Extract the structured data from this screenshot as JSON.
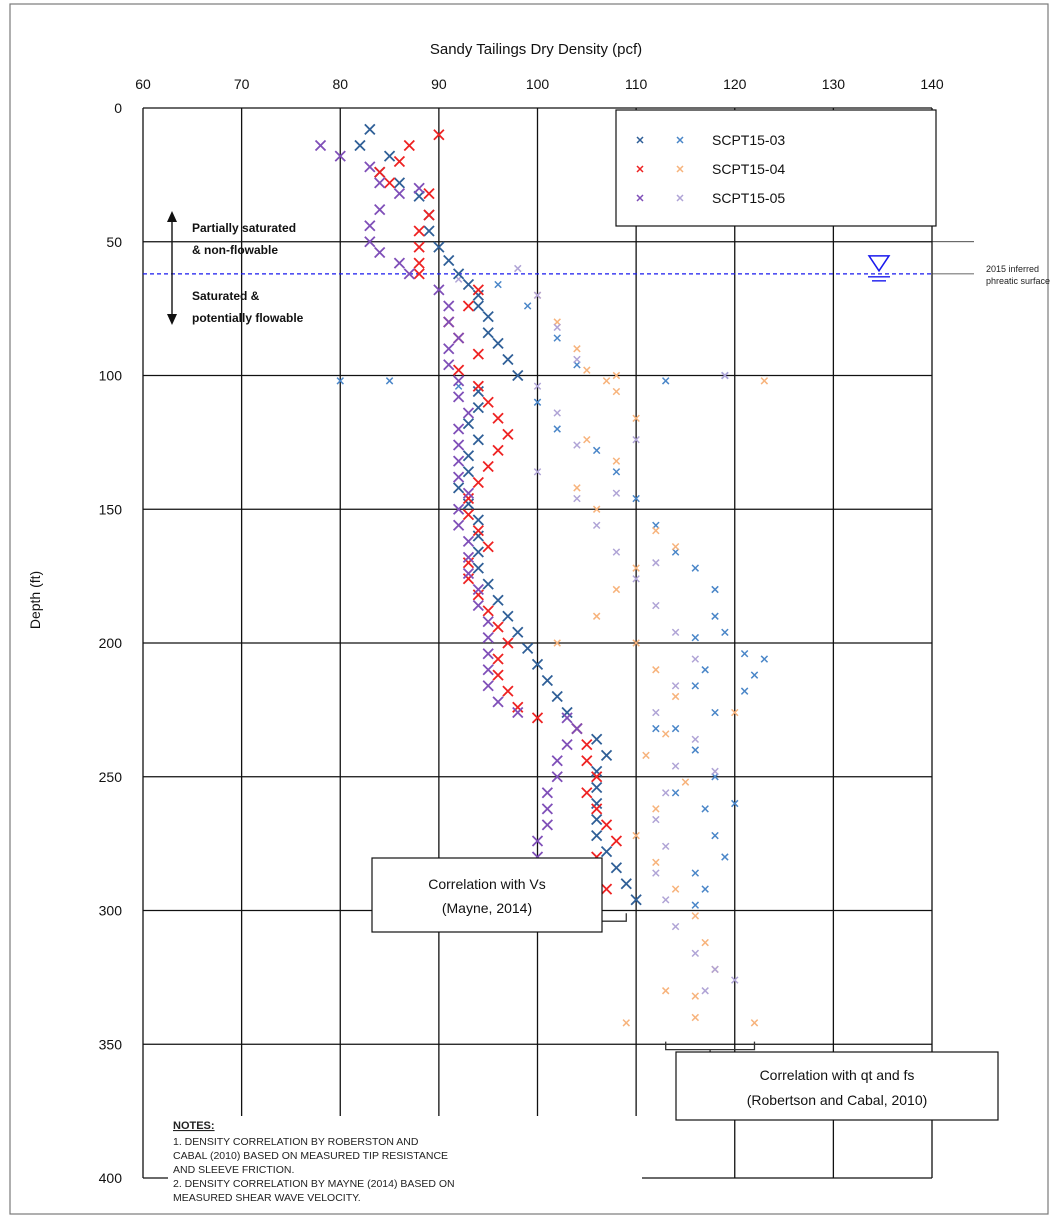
{
  "chart_data": {
    "type": "scatter",
    "title": "Sandy Tailings Dry Density (pcf)",
    "xlabel": "Sandy Tailings Dry Density (pcf)",
    "ylabel": "Depth (ft)",
    "xlim": [
      60,
      140
    ],
    "ylim": [
      0,
      400
    ],
    "y_inverted": true,
    "x_axis_position": "top",
    "x_ticks": [
      "60",
      "70",
      "80",
      "90",
      "100",
      "110",
      "120",
      "130",
      "140"
    ],
    "y_ticks": [
      "0",
      "50",
      "100",
      "150",
      "200",
      "250",
      "300",
      "350",
      "400"
    ],
    "grid": true,
    "legend_position": "top-right",
    "legend": [
      {
        "name": "SCPT15-03",
        "vs_color": "#2f5f97",
        "qt_color": "#4a86c8"
      },
      {
        "name": "SCPT15-04",
        "vs_color": "#ee2222",
        "qt_color": "#f7b37c"
      },
      {
        "name": "SCPT15-05",
        "vs_color": "#7f4fb8",
        "qt_color": "#b0a4d6"
      }
    ],
    "series": [
      {
        "name": "SCPT15-03",
        "method": "Vs",
        "color": "#2f5f97",
        "points": [
          [
            83,
            8
          ],
          [
            82,
            14
          ],
          [
            85,
            18
          ],
          [
            84,
            24
          ],
          [
            86,
            28
          ],
          [
            88,
            33
          ],
          [
            89,
            40
          ],
          [
            89,
            46
          ],
          [
            90,
            52
          ],
          [
            91,
            57
          ],
          [
            92,
            62
          ],
          [
            93,
            66
          ],
          [
            94,
            70
          ],
          [
            94,
            74
          ],
          [
            95,
            78
          ],
          [
            95,
            84
          ],
          [
            96,
            88
          ],
          [
            97,
            94
          ],
          [
            98,
            100
          ],
          [
            94,
            106
          ],
          [
            94,
            112
          ],
          [
            93,
            118
          ],
          [
            94,
            124
          ],
          [
            93,
            130
          ],
          [
            93,
            136
          ],
          [
            92,
            142
          ],
          [
            93,
            148
          ],
          [
            94,
            154
          ],
          [
            94,
            160
          ],
          [
            94,
            166
          ],
          [
            94,
            172
          ],
          [
            95,
            178
          ],
          [
            96,
            184
          ],
          [
            97,
            190
          ],
          [
            98,
            196
          ],
          [
            99,
            202
          ],
          [
            100,
            208
          ],
          [
            101,
            214
          ],
          [
            102,
            220
          ],
          [
            103,
            226
          ],
          [
            104,
            232
          ],
          [
            106,
            236
          ],
          [
            107,
            242
          ],
          [
            106,
            248
          ],
          [
            106,
            254
          ],
          [
            106,
            260
          ],
          [
            106,
            266
          ],
          [
            106,
            272
          ],
          [
            107,
            278
          ],
          [
            108,
            284
          ],
          [
            109,
            290
          ],
          [
            110,
            296
          ]
        ]
      },
      {
        "name": "SCPT15-04",
        "method": "Vs",
        "color": "#ee2222",
        "points": [
          [
            90,
            10
          ],
          [
            87,
            14
          ],
          [
            86,
            20
          ],
          [
            84,
            24
          ],
          [
            85,
            28
          ],
          [
            89,
            32
          ],
          [
            89,
            40
          ],
          [
            88,
            46
          ],
          [
            88,
            52
          ],
          [
            88,
            58
          ],
          [
            88,
            62
          ],
          [
            94,
            68
          ],
          [
            93,
            74
          ],
          [
            91,
            80
          ],
          [
            92,
            86
          ],
          [
            94,
            92
          ],
          [
            92,
            98
          ],
          [
            94,
            104
          ],
          [
            95,
            110
          ],
          [
            96,
            116
          ],
          [
            97,
            122
          ],
          [
            96,
            128
          ],
          [
            95,
            134
          ],
          [
            94,
            140
          ],
          [
            93,
            146
          ],
          [
            93,
            152
          ],
          [
            94,
            158
          ],
          [
            95,
            164
          ],
          [
            93,
            170
          ],
          [
            93,
            176
          ],
          [
            94,
            182
          ],
          [
            95,
            188
          ],
          [
            96,
            194
          ],
          [
            97,
            200
          ],
          [
            96,
            206
          ],
          [
            96,
            212
          ],
          [
            97,
            218
          ],
          [
            98,
            224
          ],
          [
            100,
            228
          ],
          [
            104,
            232
          ],
          [
            105,
            238
          ],
          [
            105,
            244
          ],
          [
            106,
            250
          ],
          [
            105,
            256
          ],
          [
            106,
            262
          ],
          [
            107,
            268
          ],
          [
            108,
            274
          ],
          [
            106,
            280
          ],
          [
            106,
            286
          ],
          [
            107,
            292
          ],
          [
            106,
            298
          ],
          [
            103,
            302
          ]
        ]
      },
      {
        "name": "SCPT15-05",
        "method": "Vs",
        "color": "#7f4fb8",
        "points": [
          [
            78,
            14
          ],
          [
            80,
            18
          ],
          [
            83,
            22
          ],
          [
            84,
            28
          ],
          [
            86,
            32
          ],
          [
            88,
            30
          ],
          [
            84,
            38
          ],
          [
            83,
            44
          ],
          [
            83,
            50
          ],
          [
            84,
            54
          ],
          [
            86,
            58
          ],
          [
            87,
            62
          ],
          [
            90,
            68
          ],
          [
            91,
            74
          ],
          [
            91,
            80
          ],
          [
            92,
            86
          ],
          [
            91,
            90
          ],
          [
            91,
            96
          ],
          [
            92,
            102
          ],
          [
            92,
            108
          ],
          [
            93,
            114
          ],
          [
            92,
            120
          ],
          [
            92,
            126
          ],
          [
            92,
            132
          ],
          [
            92,
            138
          ],
          [
            93,
            144
          ],
          [
            92,
            150
          ],
          [
            92,
            156
          ],
          [
            93,
            162
          ],
          [
            93,
            168
          ],
          [
            93,
            174
          ],
          [
            94,
            180
          ],
          [
            94,
            186
          ],
          [
            95,
            192
          ],
          [
            95,
            198
          ],
          [
            95,
            204
          ],
          [
            95,
            210
          ],
          [
            95,
            216
          ],
          [
            96,
            222
          ],
          [
            98,
            226
          ],
          [
            103,
            228
          ],
          [
            104,
            232
          ],
          [
            103,
            238
          ],
          [
            102,
            244
          ],
          [
            102,
            250
          ],
          [
            101,
            256
          ],
          [
            101,
            262
          ],
          [
            101,
            268
          ],
          [
            100,
            274
          ],
          [
            100,
            280
          ],
          [
            101,
            286
          ],
          [
            102,
            292
          ],
          [
            102,
            298
          ],
          [
            102,
            302
          ]
        ]
      },
      {
        "name": "SCPT15-03",
        "method": "qt-fs",
        "color": "#4a86c8",
        "points": [
          [
            80,
            102
          ],
          [
            85,
            102
          ],
          [
            92,
            104
          ],
          [
            96,
            66
          ],
          [
            99,
            74
          ],
          [
            102,
            86
          ],
          [
            104,
            96
          ],
          [
            100,
            110
          ],
          [
            102,
            120
          ],
          [
            106,
            128
          ],
          [
            108,
            136
          ],
          [
            110,
            146
          ],
          [
            112,
            156
          ],
          [
            114,
            166
          ],
          [
            116,
            172
          ],
          [
            118,
            180
          ],
          [
            118,
            190
          ],
          [
            116,
            198
          ],
          [
            119,
            196
          ],
          [
            121,
            204
          ],
          [
            117,
            210
          ],
          [
            116,
            216
          ],
          [
            122,
            212
          ],
          [
            121,
            218
          ],
          [
            118,
            226
          ],
          [
            114,
            232
          ],
          [
            116,
            240
          ],
          [
            118,
            250
          ],
          [
            114,
            256
          ],
          [
            117,
            262
          ],
          [
            118,
            272
          ],
          [
            119,
            280
          ],
          [
            116,
            286
          ],
          [
            117,
            292
          ],
          [
            116,
            298
          ],
          [
            113,
            102
          ],
          [
            119,
            100
          ],
          [
            123,
            206
          ],
          [
            120,
            260
          ],
          [
            112,
            232
          ]
        ]
      },
      {
        "name": "SCPT15-04",
        "method": "qt-fs",
        "color": "#f7b37c",
        "points": [
          [
            87,
            62
          ],
          [
            92,
            62
          ],
          [
            100,
            70
          ],
          [
            102,
            80
          ],
          [
            104,
            90
          ],
          [
            105,
            98
          ],
          [
            108,
            106
          ],
          [
            110,
            116
          ],
          [
            105,
            124
          ],
          [
            108,
            132
          ],
          [
            104,
            142
          ],
          [
            106,
            150
          ],
          [
            112,
            158
          ],
          [
            114,
            164
          ],
          [
            110,
            172
          ],
          [
            108,
            180
          ],
          [
            106,
            190
          ],
          [
            110,
            200
          ],
          [
            112,
            210
          ],
          [
            114,
            220
          ],
          [
            120,
            226
          ],
          [
            113,
            234
          ],
          [
            111,
            242
          ],
          [
            115,
            252
          ],
          [
            112,
            262
          ],
          [
            110,
            272
          ],
          [
            112,
            282
          ],
          [
            114,
            292
          ],
          [
            116,
            302
          ],
          [
            117,
            312
          ],
          [
            118,
            322
          ],
          [
            116,
            332
          ],
          [
            116,
            340
          ],
          [
            122,
            342
          ],
          [
            109,
            342
          ],
          [
            113,
            330
          ],
          [
            123,
            102
          ],
          [
            108,
            100
          ],
          [
            107,
            102
          ],
          [
            102,
            200
          ]
        ]
      },
      {
        "name": "SCPT15-05",
        "method": "qt-fs",
        "color": "#b0a4d6",
        "points": [
          [
            92,
            64
          ],
          [
            98,
            60
          ],
          [
            100,
            70
          ],
          [
            102,
            82
          ],
          [
            104,
            94
          ],
          [
            100,
            104
          ],
          [
            102,
            114
          ],
          [
            104,
            126
          ],
          [
            100,
            136
          ],
          [
            104,
            146
          ],
          [
            106,
            156
          ],
          [
            108,
            166
          ],
          [
            110,
            176
          ],
          [
            112,
            186
          ],
          [
            114,
            196
          ],
          [
            116,
            206
          ],
          [
            114,
            216
          ],
          [
            112,
            226
          ],
          [
            116,
            236
          ],
          [
            114,
            246
          ],
          [
            113,
            256
          ],
          [
            112,
            266
          ],
          [
            113,
            276
          ],
          [
            112,
            286
          ],
          [
            113,
            296
          ],
          [
            114,
            306
          ],
          [
            116,
            316
          ],
          [
            118,
            322
          ],
          [
            120,
            326
          ],
          [
            117,
            330
          ],
          [
            119,
            100
          ],
          [
            110,
            124
          ],
          [
            108,
            144
          ],
          [
            112,
            170
          ],
          [
            118,
            248
          ]
        ]
      }
    ],
    "annotations": {
      "water_table": {
        "depth": 62,
        "label_line1": "2015 inferred",
        "label_line2": "phreatic surface"
      },
      "zone_upper": {
        "line1": "Partially saturated",
        "line2": "& non-flowable"
      },
      "zone_lower": {
        "line1": "Saturated &",
        "line2": "potentially flowable"
      },
      "vs_bracket": {
        "x_from": 97,
        "x_to": 109,
        "depth": 304,
        "line1": "Correlation with Vs",
        "line2": "(Mayne, 2014)"
      },
      "qt_bracket": {
        "x_from": 113,
        "x_to": 122,
        "depth": 352,
        "line1": "Correlation with qt and fs",
        "line2": "(Robertson and Cabal, 2010)"
      }
    },
    "notes": {
      "heading": "NOTES:",
      "lines": [
        "1. DENSITY CORRELATION BY ROBERSTON AND",
        "CABAL (2010) BASED ON MEASURED TIP RESISTANCE",
        "AND SLEEVE FRICTION.",
        "2. DENSITY CORRELATION BY MAYNE (2014) BASED ON",
        "MEASURED SHEAR WAVE VELOCITY."
      ]
    }
  }
}
